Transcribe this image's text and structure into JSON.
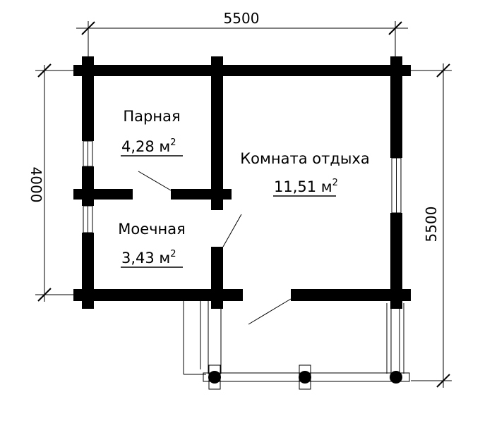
{
  "dimensions": {
    "top": "5500",
    "left": "4000",
    "right": "5500"
  },
  "rooms": [
    {
      "name": "Парная",
      "area": "4,28 м",
      "area_unit_power": "2"
    },
    {
      "name": "Моечная",
      "area": "3,43 м",
      "area_unit_power": "2"
    },
    {
      "name": "Комната отдыха",
      "area": "11,51 м",
      "area_unit_power": "2"
    }
  ],
  "colors": {
    "wall": "#000000",
    "line": "#000000",
    "background": "#ffffff"
  }
}
